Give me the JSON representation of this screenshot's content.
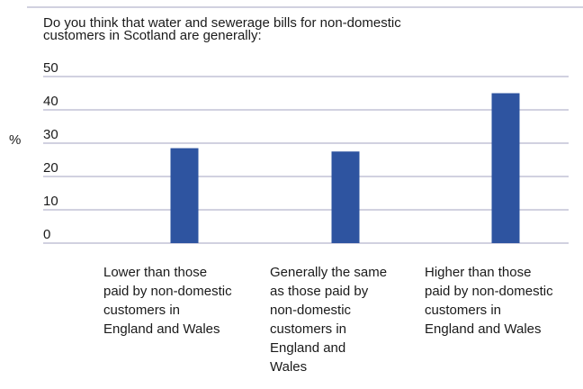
{
  "chart_data": {
    "type": "bar",
    "title": "Do you think that water and sewerage bills for non-domestic customers in Scotland are generally:",
    "title_lines": [
      "Do you think that water and sewerage bills for non-domestic",
      "customers in Scotland are generally:"
    ],
    "ylabel": "%",
    "xlabel": "",
    "ylim": [
      0,
      50
    ],
    "yticks": [
      0,
      10,
      20,
      30,
      40,
      50
    ],
    "grid": true,
    "bar_color": "#2e54a0",
    "categories": [
      "Lower than those paid by non-domestic customers in England and Wales",
      "Generally the same as those paid by non-domestic customers in England and Wales",
      "Higher than those paid by non-domestic customers in England and Wales"
    ],
    "category_lines": [
      [
        "Lower than those",
        "paid by non-domestic",
        "customers in",
        "England and Wales"
      ],
      [
        "Generally the same",
        "as those paid by",
        "non-domestic",
        "customers in",
        "England and",
        "Wales"
      ],
      [
        "Higher than those",
        "paid by non-domestic",
        "customers in",
        "England and Wales"
      ]
    ],
    "values": [
      28.5,
      27.5,
      45
    ]
  }
}
